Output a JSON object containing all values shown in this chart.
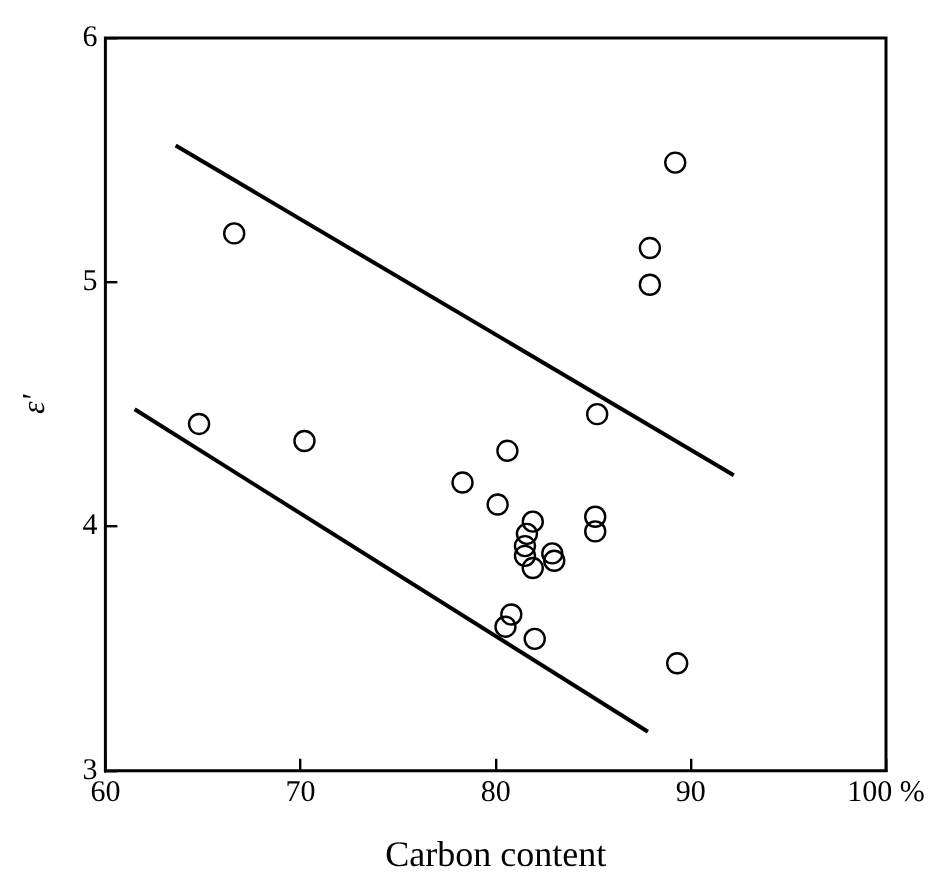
{
  "chart_data": {
    "type": "scatter",
    "xlabel": "Carbon content",
    "ylabel": "ε'",
    "xlim": [
      60,
      100
    ],
    "ylim": [
      3,
      6
    ],
    "xticks": [
      60,
      70,
      80,
      90,
      {
        "value": 100,
        "label": "100 %"
      }
    ],
    "yticks": [
      3,
      4,
      5,
      6
    ],
    "grid": false,
    "legend": false,
    "series": [
      {
        "marker": "circle",
        "color": "#000000",
        "x": [
          66.6,
          85.2,
          78.3,
          80.1,
          81.5,
          81.9,
          80.8,
          80.5
        ],
        "values": [
          5.2,
          4.46,
          4.18,
          4.09,
          3.88,
          3.83,
          3.64,
          3.59
        ]
      },
      {
        "marker": "circle",
        "color": "#000000",
        "x": [
          64.8,
          70.2,
          80.6,
          81.9,
          81.5,
          82.9,
          85.1,
          82.0,
          89.3
        ],
        "values": [
          4.42,
          4.35,
          4.31,
          4.02,
          3.92,
          3.89,
          3.98,
          3.54,
          3.44
        ]
      },
      {
        "marker": "circle",
        "color": "#000000",
        "x": [
          89.2,
          87.9,
          87.9,
          81.6,
          83.0,
          85.1
        ],
        "values": [
          5.49,
          5.14,
          4.99,
          3.97,
          3.86,
          4.04
        ]
      },
      {
        "type": "line",
        "marker": "none",
        "color": "#000000",
        "x": [
          63.6,
          92.2
        ],
        "values": [
          5.56,
          4.21
        ]
      },
      {
        "type": "line",
        "marker": "none",
        "color": "#000000",
        "x": [
          61.5,
          87.8
        ],
        "values": [
          4.48,
          3.16
        ]
      }
    ]
  }
}
